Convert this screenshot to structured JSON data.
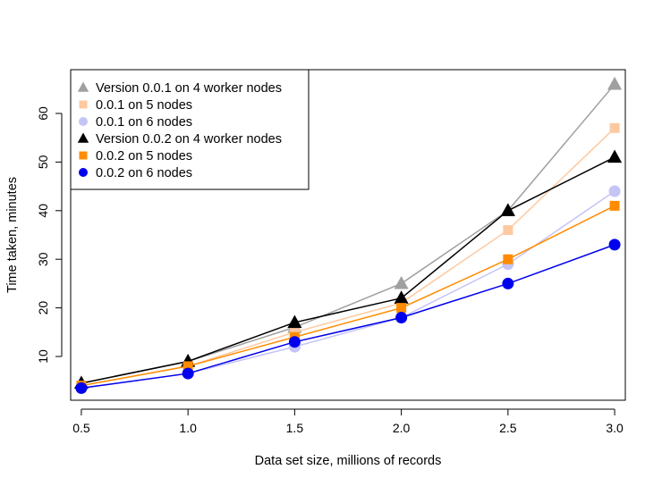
{
  "chart_data": {
    "type": "line",
    "title": "",
    "xlabel": "Data set size, millions of records",
    "ylabel": "Time taken, minutes",
    "x": [
      0.5,
      1.0,
      1.5,
      2.0,
      2.5,
      3.0
    ],
    "x_tick_labels": [
      "0.5",
      "1.0",
      "1.5",
      "2.0",
      "2.5",
      "3.0"
    ],
    "y_ticks": [
      10,
      20,
      30,
      40,
      50,
      60
    ],
    "xlim": [
      0.45,
      3.05
    ],
    "ylim": [
      1,
      69
    ],
    "grid": false,
    "legend_position": "top-left",
    "series": [
      {
        "name": "Version 0.0.1 on 4 worker nodes",
        "marker": "triangle",
        "color": "#a0a0a0",
        "values": [
          4.5,
          9,
          16,
          25,
          40,
          66
        ]
      },
      {
        "name": "0.0.1 on 5 nodes",
        "marker": "square",
        "color": "#fdc9a0",
        "values": [
          4,
          8,
          15,
          21,
          36,
          57
        ]
      },
      {
        "name": "0.0.1 on 6 nodes",
        "marker": "circle",
        "color": "#c4c4f6",
        "values": [
          3.5,
          6.5,
          12,
          18,
          29,
          44
        ]
      },
      {
        "name": "Version 0.0.2 on 4 worker nodes",
        "marker": "triangle",
        "color": "#000000",
        "values": [
          4.5,
          9,
          17,
          22,
          40,
          51
        ]
      },
      {
        "name": "0.0.2 on 5 nodes",
        "marker": "square",
        "color": "#ff8c00",
        "values": [
          4,
          8,
          14,
          20,
          30,
          41
        ]
      },
      {
        "name": "0.0.2 on 6 nodes",
        "marker": "circle",
        "color": "#0000ee",
        "values": [
          3.5,
          6.5,
          13,
          18,
          25,
          33
        ]
      }
    ]
  }
}
